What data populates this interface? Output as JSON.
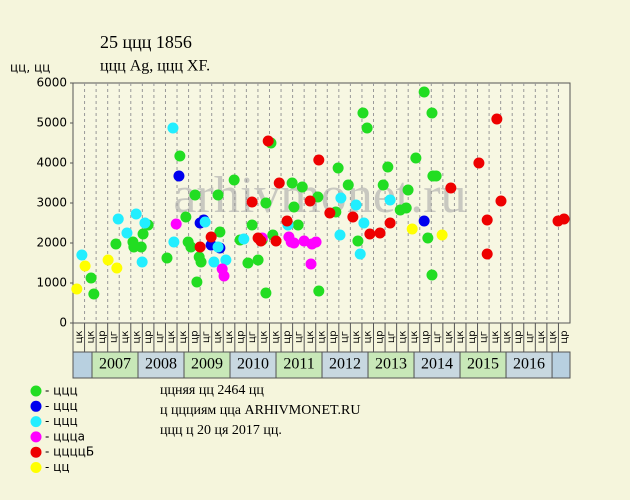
{
  "chart_data": {
    "type": "scatter",
    "title": "25 ццц 1856",
    "subtitle": "ццц Ag, ццц XF.",
    "y_label": "цц, цц",
    "watermark": "arhivmonet.ru",
    "notes": [
      "ццняя цц 2464 цц",
      "ц ццциям цца ARHIVMONET.RU",
      "ццц ц 20 ця 2017 цц."
    ],
    "xlim": [
      2006.587,
      2017.39
    ],
    "ylim": [
      0,
      6000
    ],
    "yticks": [
      0,
      1000,
      2000,
      3000,
      4000,
      5000,
      6000
    ],
    "years": [
      2007,
      2008,
      2009,
      2010,
      2011,
      2012,
      2013,
      2014,
      2015,
      2016
    ],
    "quarter_labels": [
      "цк",
      "цк",
      "цр",
      "цг",
      "цк",
      "цк",
      "цр",
      "цг",
      "цк",
      "цк",
      "цр",
      "цг",
      "цк",
      "цк",
      "цр",
      "цг",
      "цк",
      "цк",
      "цр",
      "цг",
      "цк",
      "цк",
      "цр",
      "цг",
      "цк",
      "цк",
      "цр",
      "цг",
      "цк",
      "цк",
      "цр",
      "цг",
      "цк",
      "цк",
      "цр",
      "цг",
      "цк",
      "цк",
      "цр",
      "цг",
      "цк",
      "цк",
      "цр"
    ],
    "grid": true,
    "series": [
      {
        "name": "- ццц",
        "color": "#22dd22",
        "x": [
          2006.98,
          2007.04,
          2007.52,
          2007.89,
          2007.91,
          2008.07,
          2008.11,
          2008.22,
          2008.63,
          2008.91,
          2009.04,
          2009.09,
          2009.15,
          2009.24,
          2009.28,
          2009.33,
          2009.37,
          2009.74,
          2009.78,
          2010.09,
          2010.22,
          2010.39,
          2010.48,
          2010.61,
          2010.7,
          2010.78,
          2010.78,
          2010.89,
          2010.93,
          2011.35,
          2011.39,
          2011.48,
          2011.57,
          2011.91,
          2011.93,
          2012.3,
          2012.35,
          2012.57,
          2012.78,
          2012.89,
          2012.98,
          2013.33,
          2013.43,
          2013.7,
          2013.83,
          2013.87,
          2014.04,
          2014.22,
          2014.3,
          2014.39,
          2014.39,
          2014.41,
          2014.48
        ],
        "values": [
          1125,
          725,
          1975,
          2025,
          1900,
          1900,
          2225,
          2450,
          1625,
          4175,
          2650,
          2025,
          1900,
          3200,
          1025,
          1650,
          1525,
          3200,
          2275,
          3575,
          2075,
          1500,
          2450,
          1575,
          2075,
          750,
          3000,
          4500,
          2200,
          3500,
          2900,
          2450,
          3400,
          3150,
          800,
          2775,
          3875,
          3450,
          2050,
          5250,
          4875,
          3450,
          3900,
          2825,
          2875,
          3325,
          4125,
          5775,
          2125,
          5250,
          1200,
          3675,
          3675
        ]
      },
      {
        "name": "- ццц",
        "color": "#0000ee",
        "x": [
          2008.89,
          2009.35,
          2009.43,
          2009.59,
          2009.78,
          2014.22
        ],
        "values": [
          3675,
          2500,
          2575,
          1950,
          1875,
          2550
        ]
      },
      {
        "name": "- ццц",
        "color": "#22eeff",
        "x": [
          2006.78,
          2007.57,
          2007.76,
          2007.96,
          2008.09,
          2008.15,
          2008.76,
          2008.78,
          2009.46,
          2009.65,
          2009.74,
          2009.91,
          2010.3,
          2011.26,
          2012.39,
          2012.41,
          2012.74,
          2012.83,
          2012.91,
          2013.48
        ],
        "values": [
          1700,
          2600,
          2250,
          2725,
          1525,
          2500,
          4875,
          2025,
          2525,
          1525,
          1900,
          1575,
          2100,
          2450,
          2200,
          3125,
          2950,
          1725,
          2500,
          3075
        ]
      },
      {
        "name": "- ццца",
        "color": "#ff00ff",
        "x": [
          2008.83,
          2009.83,
          2009.87,
          2010.7,
          2011.28,
          2011.33,
          2011.39,
          2011.61,
          2011.78,
          2011.76,
          2011.87
        ],
        "values": [
          2475,
          1350,
          1175,
          2125,
          2150,
          2025,
          2000,
          2050,
          1975,
          1475,
          2025
        ]
      },
      {
        "name": "- ццццБ",
        "color": "#ee0000",
        "x": [
          2009.35,
          2009.59,
          2010.48,
          2010.61,
          2010.67,
          2010.83,
          2011.0,
          2011.07,
          2011.24,
          2011.74,
          2011.93,
          2012.17,
          2012.67,
          2013.04,
          2013.26,
          2013.48,
          2014.8,
          2015.41,
          2015.59,
          2015.59,
          2015.8,
          2015.89,
          2017.13,
          2017.26
        ],
        "values": [
          1900,
          2150,
          3025,
          2125,
          2050,
          4550,
          2050,
          3500,
          2550,
          3050,
          4075,
          2750,
          2650,
          2225,
          2250,
          2500,
          3375,
          4000,
          2575,
          1725,
          5100,
          3050,
          2550,
          2600
        ]
      },
      {
        "name": "- цц",
        "color": "#ffff00",
        "x": [
          2006.67,
          2006.85,
          2007.35,
          2007.54,
          2013.96,
          2014.61
        ],
        "values": [
          850,
          1425,
          1575,
          1375,
          2350,
          2200
        ]
      }
    ]
  }
}
